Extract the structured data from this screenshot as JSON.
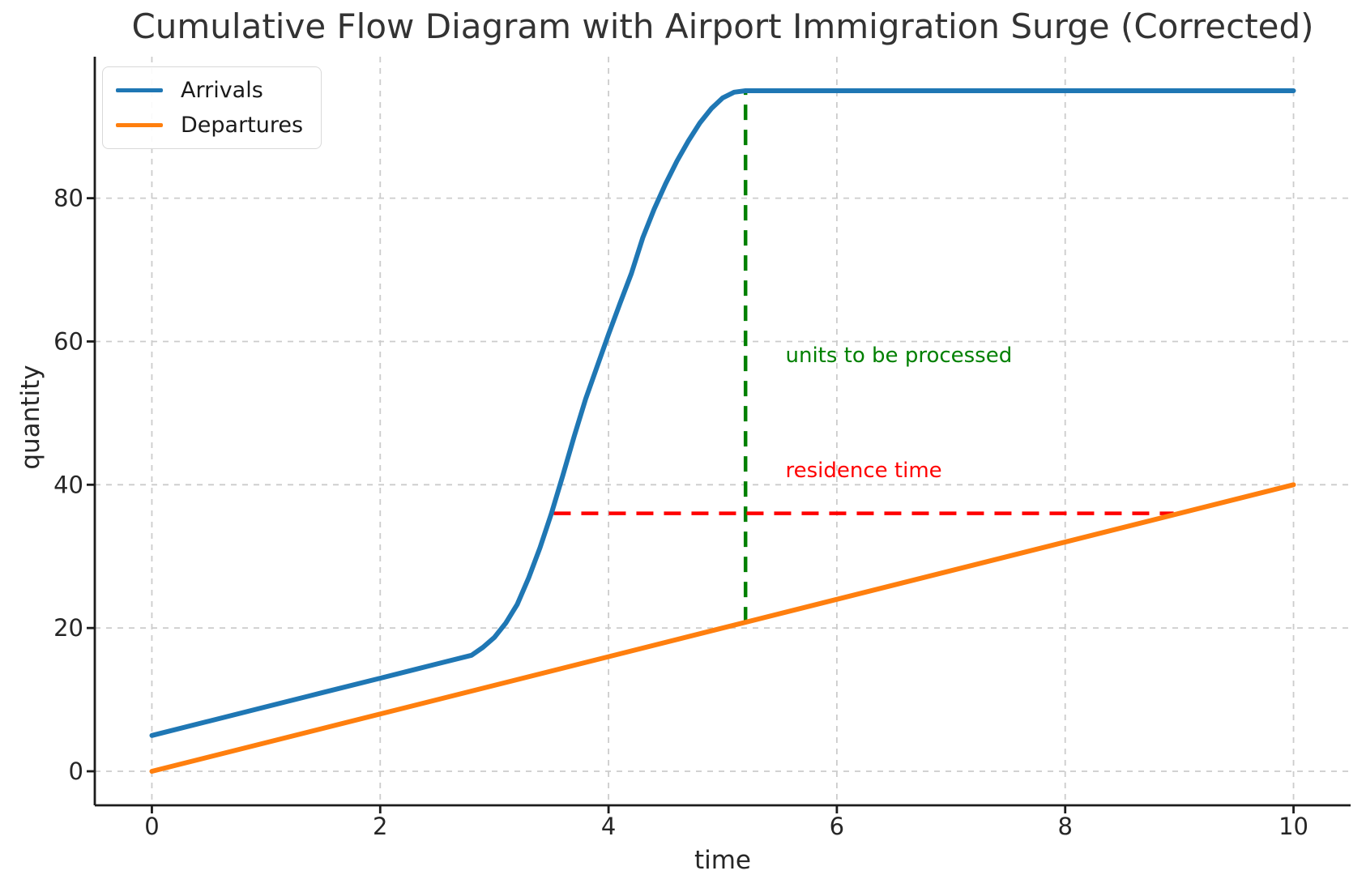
{
  "chart_data": {
    "type": "line",
    "title": "Cumulative Flow Diagram with Airport Immigration Surge (Corrected)",
    "xlabel": "time",
    "ylabel": "quantity",
    "xlim": [
      -0.5,
      10.5
    ],
    "ylim": [
      -4.75,
      99.75
    ],
    "xticks": [
      0,
      2,
      4,
      6,
      8,
      10
    ],
    "yticks": [
      0,
      20,
      40,
      60,
      80
    ],
    "grid": "dashed-both-axes",
    "grid_color": "#cccccc",
    "spine_color": "#1c1c1c",
    "legend_position": "upper-left",
    "series": [
      {
        "name": "Arrivals",
        "color": "#1f77b4",
        "x": [
          0,
          0.5,
          1,
          1.5,
          2,
          2.5,
          2.8,
          2.9,
          3.0,
          3.1,
          3.2,
          3.3,
          3.4,
          3.5,
          3.6,
          3.7,
          3.8,
          3.9,
          4.0,
          4.1,
          4.2,
          4.3,
          4.4,
          4.5,
          4.6,
          4.7,
          4.8,
          4.9,
          5.0,
          5.1,
          5.2,
          6,
          7,
          8,
          9,
          10
        ],
        "y": [
          5,
          7,
          9,
          11,
          13,
          15,
          16.2,
          17.3,
          18.7,
          20.7,
          23.3,
          27,
          31.2,
          36,
          41.3,
          46.8,
          52,
          56.5,
          61,
          65.3,
          69.5,
          74.5,
          78.5,
          82,
          85.2,
          88,
          90.5,
          92.5,
          94,
          94.8,
          95,
          95,
          95,
          95,
          95,
          95
        ]
      },
      {
        "name": "Departures",
        "color": "#ff7f0e",
        "x": [
          0,
          10
        ],
        "y": [
          0,
          40
        ]
      }
    ],
    "annotations": [
      {
        "kind": "vline",
        "x": 5.2,
        "y_from": 20.8,
        "y_to": 95,
        "color": "#008000",
        "style": "dashed",
        "label": "units to be processed",
        "label_x": 5.55,
        "label_y": 58
      },
      {
        "kind": "hline",
        "y": 36,
        "x_from": 3.52,
        "x_to": 8.95,
        "color": "#ff0000",
        "style": "dashed",
        "label": "residence time",
        "label_x": 5.55,
        "label_y": 42
      }
    ]
  }
}
